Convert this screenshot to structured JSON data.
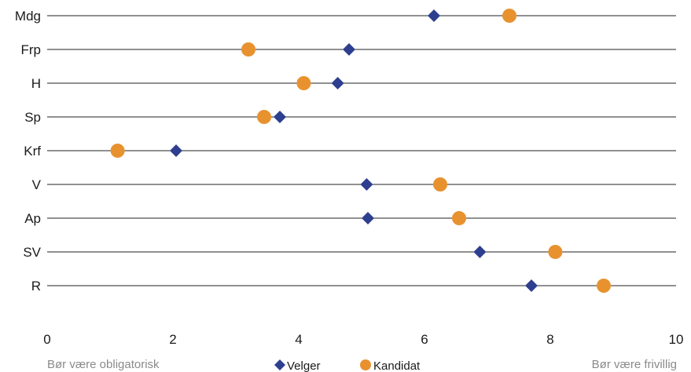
{
  "chart_data": {
    "type": "scatter",
    "categories": [
      "Mdg",
      "Frp",
      "H",
      "Sp",
      "Krf",
      "V",
      "Ap",
      "SV",
      "R"
    ],
    "series": [
      {
        "name": "Velger",
        "values": [
          6.15,
          4.8,
          4.62,
          3.7,
          2.05,
          5.08,
          5.1,
          6.88,
          7.7
        ],
        "color": "#2e3f8f",
        "marker": "diamond"
      },
      {
        "name": "Kandidat",
        "values": [
          7.35,
          3.2,
          4.08,
          3.45,
          1.12,
          6.25,
          6.55,
          8.08,
          8.85
        ],
        "color": "#e8922f",
        "marker": "circle"
      }
    ],
    "xlim": [
      0,
      10
    ],
    "xticks": [
      "0",
      "2",
      "4",
      "6",
      "8",
      "10"
    ],
    "annotations": {
      "left": "Bør være obligatorisk",
      "right": "Bør være frivillig"
    },
    "legend_position": "bottom-center",
    "grid": true
  }
}
